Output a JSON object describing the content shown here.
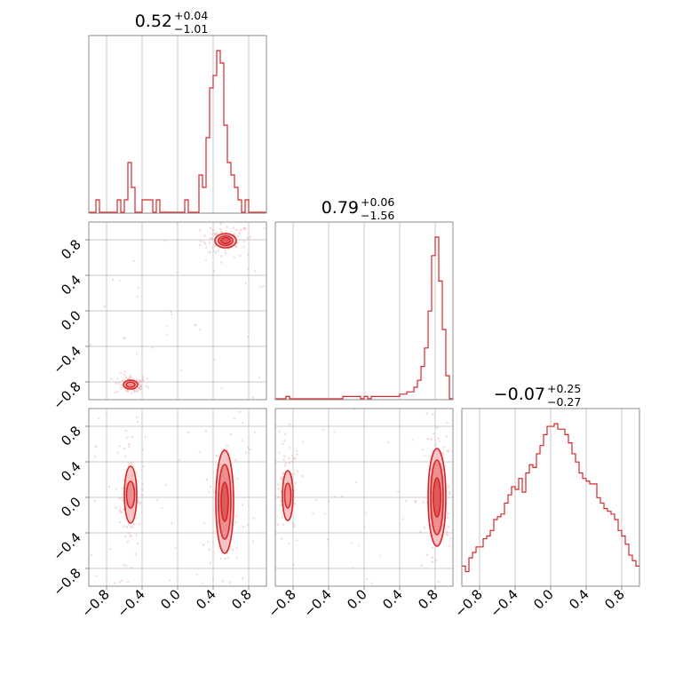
{
  "chart_data": [
    {
      "type": "histogram",
      "panel": "diag-1",
      "title": {
        "value": "0.52",
        "plus": "+0.04",
        "minus": "−1.01"
      },
      "xlim": [
        -1.0,
        1.0
      ],
      "bin_edges_start": -1.0,
      "bin_width": 0.04,
      "counts": [
        0,
        0,
        1,
        0,
        0,
        0,
        0,
        0,
        1,
        0,
        1,
        4,
        2,
        0,
        0,
        1,
        1,
        1,
        0,
        1,
        0,
        0,
        0,
        0,
        0,
        0,
        0,
        1,
        0,
        0,
        0,
        3,
        2,
        6,
        10,
        11,
        13,
        12,
        7,
        4,
        3,
        2,
        1,
        0,
        1,
        0,
        0,
        0,
        0,
        0
      ],
      "grid_x": [
        -0.8,
        -0.4,
        0.0,
        0.4,
        0.8
      ]
    },
    {
      "type": "histogram",
      "panel": "diag-2",
      "title": {
        "value": "0.79",
        "plus": "+0.06",
        "minus": "−1.56"
      },
      "xlim": [
        -1.0,
        1.0
      ],
      "bin_edges_start": -1.0,
      "bin_width": 0.04,
      "counts": [
        0,
        0,
        0,
        1,
        0,
        0,
        0,
        0,
        0,
        0,
        0,
        0,
        0,
        0,
        0,
        0,
        0,
        0,
        0,
        1,
        1,
        1,
        1,
        1,
        0,
        1,
        0,
        1,
        1,
        1,
        1,
        1,
        1,
        1,
        1,
        2,
        2,
        3,
        3,
        5,
        8,
        14,
        22,
        38,
        62,
        70,
        51,
        30,
        10,
        0
      ],
      "grid_x": [
        -0.8,
        -0.4,
        0.0,
        0.4,
        0.8
      ]
    },
    {
      "type": "histogram",
      "panel": "diag-3",
      "title": {
        "value": "−0.07",
        "plus": "+0.25",
        "minus": "−0.27"
      },
      "xlim": [
        -1.0,
        1.0
      ],
      "bin_edges_start": -1.0,
      "bin_width": 0.04,
      "counts": [
        7,
        5,
        10,
        12,
        14,
        14,
        17,
        18,
        20,
        24,
        25,
        26,
        30,
        33,
        36,
        35,
        39,
        34,
        41,
        44,
        43,
        48,
        51,
        55,
        58,
        58,
        59,
        57,
        57,
        55,
        52,
        48,
        45,
        41,
        39,
        38,
        37,
        37,
        32,
        30,
        28,
        27,
        26,
        24,
        20,
        18,
        15,
        11,
        9,
        7
      ],
      "xticks": [
        -0.8,
        -0.4,
        0.0,
        0.4,
        0.8
      ],
      "xtick_labels": [
        "−0.8",
        "−0.4",
        "0.0",
        "0.4",
        "0.8"
      ]
    },
    {
      "type": "scatter",
      "panel": "joint-x1-x2",
      "xlim": [
        -1.0,
        1.0
      ],
      "ylim": [
        -1.0,
        1.0
      ],
      "yticks": [
        -0.8,
        -0.4,
        0.0,
        0.4,
        0.8
      ],
      "ytick_labels": [
        "−0.8",
        "−0.4",
        "0.0",
        "0.4",
        "0.8"
      ],
      "clusters": [
        {
          "center": [
            0.54,
            0.79
          ],
          "contours": [
            [
              0.12,
              0.08
            ],
            [
              0.08,
              0.055
            ],
            [
              0.05,
              0.035
            ]
          ]
        },
        {
          "center": [
            -0.53,
            -0.83
          ],
          "contours": [
            [
              0.08,
              0.05
            ],
            [
              0.05,
              0.03
            ]
          ]
        }
      ]
    },
    {
      "type": "scatter",
      "panel": "joint-x1-x3",
      "xlim": [
        -1.0,
        1.0
      ],
      "ylim": [
        -1.0,
        1.0
      ],
      "xticks": [
        -0.8,
        -0.4,
        0.0,
        0.4,
        0.8
      ],
      "xtick_labels": [
        "−0.8",
        "−0.4",
        "0.0",
        "0.4",
        "0.8"
      ],
      "yticks": [
        -0.8,
        -0.4,
        0.0,
        0.4,
        0.8
      ],
      "ytick_labels": [
        "−0.8",
        "−0.4",
        "0.0",
        "0.4",
        "0.8"
      ],
      "clusters": [
        {
          "center": [
            0.53,
            -0.05
          ],
          "contours": [
            [
              0.1,
              0.58
            ],
            [
              0.07,
              0.42
            ],
            [
              0.04,
              0.22
            ]
          ]
        },
        {
          "center": [
            -0.53,
            0.03
          ],
          "contours": [
            [
              0.07,
              0.32
            ],
            [
              0.045,
              0.15
            ]
          ]
        }
      ]
    },
    {
      "type": "scatter",
      "panel": "joint-x2-x3",
      "xlim": [
        -1.0,
        1.0
      ],
      "ylim": [
        -1.0,
        1.0
      ],
      "xticks": [
        -0.8,
        -0.4,
        0.0,
        0.4,
        0.8
      ],
      "xtick_labels": [
        "−0.8",
        "−0.4",
        "0.0",
        "0.4",
        "0.8"
      ],
      "clusters": [
        {
          "center": [
            0.82,
            0.0
          ],
          "contours": [
            [
              0.1,
              0.55
            ],
            [
              0.07,
              0.42
            ],
            [
              0.04,
              0.22
            ]
          ]
        },
        {
          "center": [
            -0.86,
            0.02
          ],
          "contours": [
            [
              0.06,
              0.28
            ],
            [
              0.035,
              0.14
            ]
          ]
        }
      ]
    }
  ]
}
